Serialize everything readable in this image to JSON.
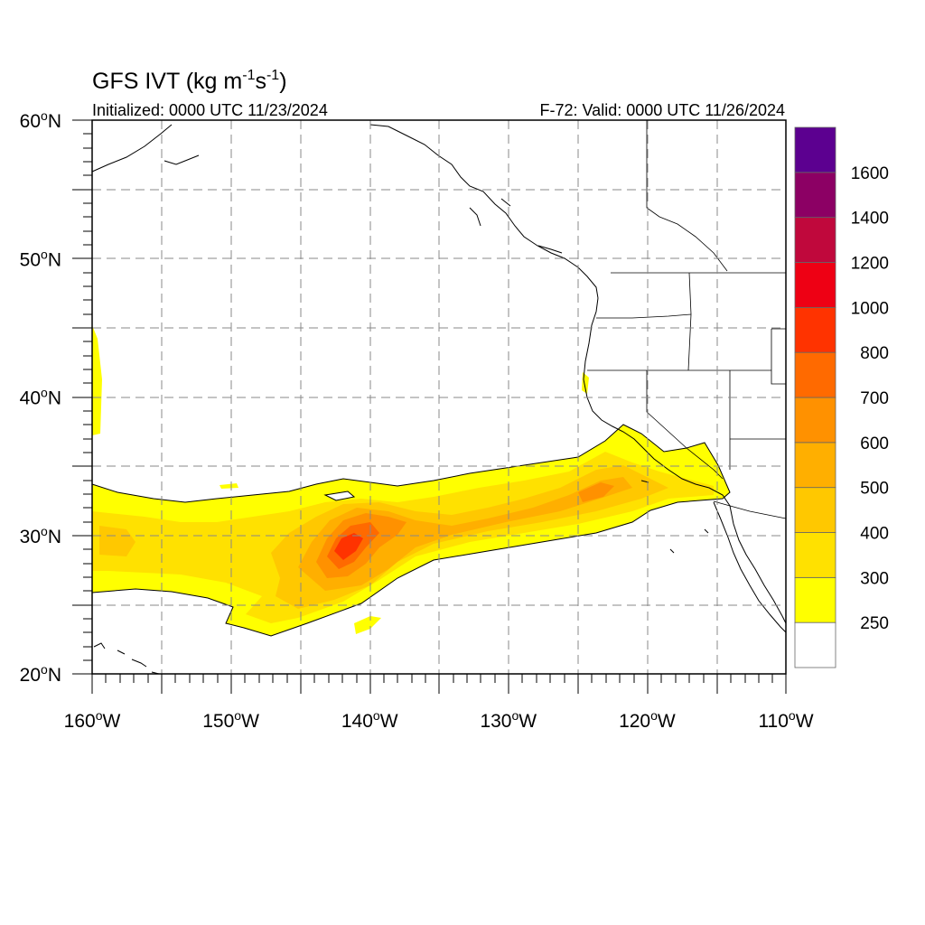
{
  "title": {
    "main": "GFS IVT (kg m",
    "sup1": "-1",
    "mid": "s",
    "sup2": "-1",
    "end": ")"
  },
  "initialized": "Initialized: 0000 UTC 11/23/2024",
  "valid": "F-72: Valid: 0000 UTC 11/26/2024",
  "map": {
    "lon_range": [
      -160,
      -110
    ],
    "lat_range": [
      20,
      60
    ],
    "lon_labels": [
      {
        "lon": -160,
        "text": "160°W"
      },
      {
        "lon": -150,
        "text": "150°W"
      },
      {
        "lon": -140,
        "text": "140°W"
      },
      {
        "lon": -130,
        "text": "130°W"
      },
      {
        "lon": -120,
        "text": "120°W"
      },
      {
        "lon": -110,
        "text": "110°W"
      }
    ],
    "lat_labels": [
      {
        "lat": 60,
        "text": "60°N"
      },
      {
        "lat": 50,
        "text": "50°N"
      },
      {
        "lat": 40,
        "text": "40°N"
      },
      {
        "lat": 30,
        "text": "30°N"
      },
      {
        "lat": 20,
        "text": "20°N"
      }
    ],
    "gridlines": {
      "lon_step": 5,
      "lat_step": 5,
      "style": "dashed"
    }
  },
  "colorbar": {
    "levels": [
      "250",
      "300",
      "400",
      "500",
      "600",
      "700",
      "800",
      "1000",
      "1200",
      "1400",
      "1600"
    ],
    "colors": [
      "#ffffff",
      "#ffff00",
      "#ffe100",
      "#ffc800",
      "#ffaf00",
      "#ff9100",
      "#ff6a00",
      "#ff3300",
      "#ee0014",
      "#c0083c",
      "#8c0064",
      "#5c0090"
    ]
  }
}
